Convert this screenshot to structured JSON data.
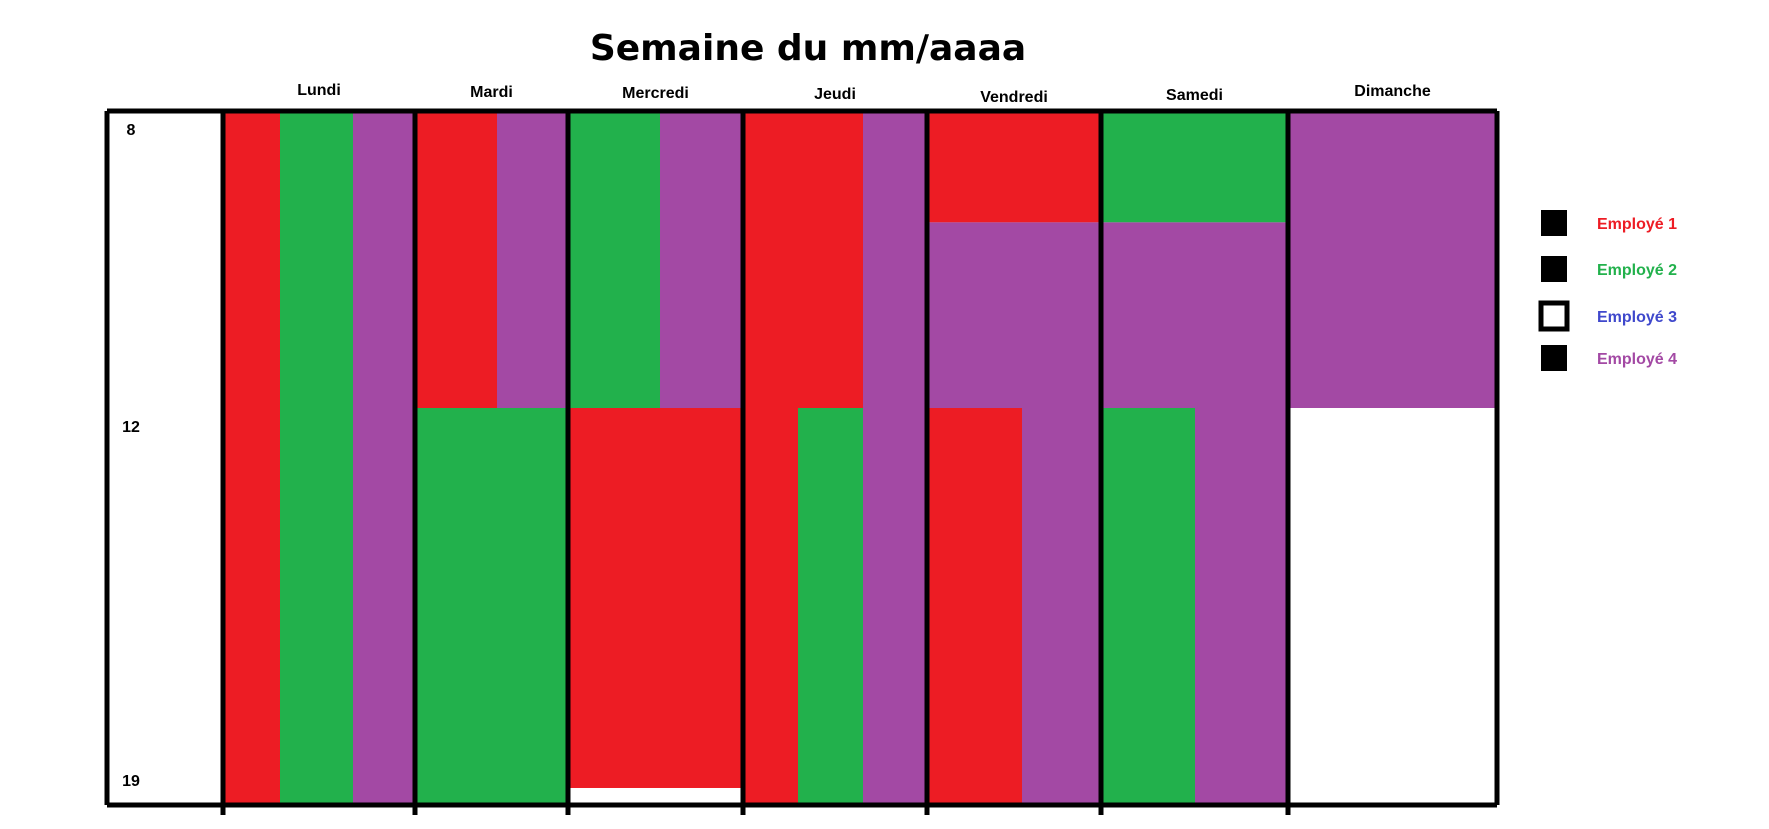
{
  "chart_data": {
    "type": "schedule",
    "title": "Semaine du mm/aaaa",
    "hour_range": [
      8,
      19
    ],
    "hour_ticks": [
      8,
      12,
      19
    ],
    "days": [
      "Lundi",
      "Mardi",
      "Mercredi",
      "Jeudi",
      "Vendredi",
      "Samedi",
      "Dimanche"
    ],
    "employees": [
      {
        "name": "Employé 1",
        "color": "#ED1C24",
        "text_color": "#ED1C24"
      },
      {
        "name": "Employé 2",
        "color": "#22B14C",
        "text_color": "#22B14C"
      },
      {
        "name": "Employé 3",
        "color": "#FFFFFF",
        "text_color": "#3F48CC"
      },
      {
        "name": "Employé 4",
        "color": "#A349A4",
        "text_color": "#A349A4"
      }
    ],
    "schedule": [
      {
        "day": "Lundi",
        "lanes": [
          [
            {
              "employee": 1,
              "start": 8,
              "end": 19
            }
          ],
          [
            {
              "employee": 2,
              "start": 8,
              "end": 19
            }
          ],
          [
            {
              "employee": 4,
              "start": 8,
              "end": 19
            }
          ]
        ]
      },
      {
        "day": "Mardi",
        "lanes": [
          [
            {
              "employee": 1,
              "start": 8,
              "end": 12
            },
            {
              "employee": 2,
              "start": 12,
              "end": 19
            }
          ],
          [
            {
              "employee": 4,
              "start": 8,
              "end": 12
            },
            {
              "employee": 2,
              "start": 12,
              "end": 19
            }
          ]
        ]
      },
      {
        "day": "Mercredi",
        "lanes": [
          [
            {
              "employee": 2,
              "start": 8,
              "end": 12
            },
            {
              "employee": 1,
              "start": 12,
              "end": 18.7
            }
          ],
          [
            {
              "employee": 4,
              "start": 8,
              "end": 12
            },
            {
              "employee": 1,
              "start": 12,
              "end": 18.7
            }
          ]
        ]
      },
      {
        "day": "Jeudi",
        "lanes": [
          [
            {
              "employee": 1,
              "start": 8,
              "end": 19
            }
          ],
          [
            {
              "employee": 1,
              "start": 8,
              "end": 12
            },
            {
              "employee": 2,
              "start": 12,
              "end": 19
            }
          ],
          [
            {
              "employee": 4,
              "start": 8,
              "end": 19
            }
          ]
        ]
      },
      {
        "day": "Vendredi",
        "lanes": [
          [
            {
              "employee": 1,
              "start": 8,
              "end": 9.5
            },
            {
              "employee": 4,
              "start": 9.5,
              "end": 12
            },
            {
              "employee": 1,
              "start": 12,
              "end": 19
            }
          ],
          [
            {
              "employee": 1,
              "start": 8,
              "end": 9.5
            },
            {
              "employee": 4,
              "start": 9.5,
              "end": 19
            }
          ]
        ]
      },
      {
        "day": "Samedi",
        "lanes": [
          [
            {
              "employee": 2,
              "start": 8,
              "end": 9.5
            },
            {
              "employee": 4,
              "start": 9.5,
              "end": 12
            },
            {
              "employee": 2,
              "start": 12,
              "end": 19
            }
          ],
          [
            {
              "employee": 2,
              "start": 8,
              "end": 9.5
            },
            {
              "employee": 4,
              "start": 9.5,
              "end": 19
            }
          ]
        ]
      },
      {
        "day": "Dimanche",
        "lanes": [
          [
            {
              "employee": 4,
              "start": 8,
              "end": 12
            }
          ]
        ]
      }
    ]
  }
}
